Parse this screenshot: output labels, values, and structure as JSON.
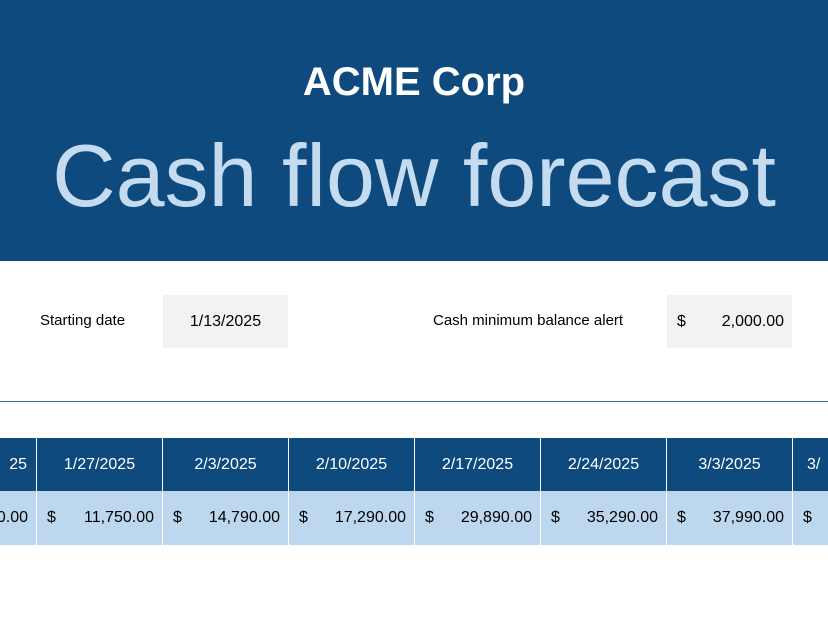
{
  "header": {
    "company": "ACME Corp",
    "title": "Cash flow forecast"
  },
  "settings": {
    "starting_date_label": "Starting date",
    "starting_date": "1/13/2025",
    "min_balance_label": "Cash minimum balance alert",
    "min_balance_currency": "$",
    "min_balance": "2,000.00"
  },
  "table": {
    "dates": [
      "25",
      "1/27/2025",
      "2/3/2025",
      "2/10/2025",
      "2/17/2025",
      "2/24/2025",
      "3/3/2025",
      "3/"
    ],
    "balances": [
      {
        "amount": "0.00"
      },
      {
        "currency": "$",
        "amount": "11,750.00"
      },
      {
        "currency": "$",
        "amount": "14,790.00"
      },
      {
        "currency": "$",
        "amount": "17,290.00"
      },
      {
        "currency": "$",
        "amount": "29,890.00"
      },
      {
        "currency": "$",
        "amount": "35,290.00"
      },
      {
        "currency": "$",
        "amount": "37,990.00"
      },
      {
        "currency": "$"
      }
    ]
  }
}
